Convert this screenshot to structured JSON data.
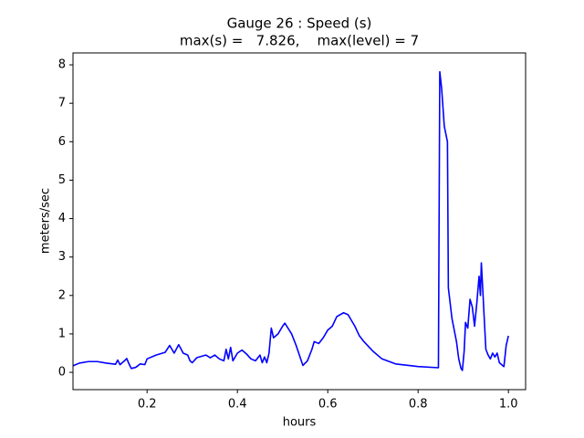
{
  "chart_data": {
    "type": "line",
    "title": "Gauge 26 : Speed (s)",
    "subtitle": "max(s) =   7.826,    max(level) = 7",
    "xlabel": "hours",
    "ylabel": "meters/sec",
    "xlim": [
      0.036,
      1.038
    ],
    "ylim": [
      -0.45,
      8.31
    ],
    "xticks": [
      0.2,
      0.4,
      0.6,
      0.8,
      {
        "value": 1.0,
        "label": "1.0"
      }
    ],
    "yticks": [
      0,
      1,
      2,
      3,
      4,
      5,
      6,
      7,
      8
    ],
    "grid": false,
    "series": [
      {
        "name": "speed",
        "color": "#0000ff",
        "x": [
          0.036,
          0.05,
          0.07,
          0.09,
          0.11,
          0.13,
          0.135,
          0.14,
          0.15,
          0.155,
          0.16,
          0.165,
          0.175,
          0.185,
          0.195,
          0.2,
          0.22,
          0.24,
          0.25,
          0.26,
          0.27,
          0.28,
          0.29,
          0.295,
          0.3,
          0.31,
          0.33,
          0.34,
          0.35,
          0.36,
          0.37,
          0.375,
          0.38,
          0.385,
          0.39,
          0.4,
          0.41,
          0.42,
          0.43,
          0.44,
          0.45,
          0.455,
          0.46,
          0.465,
          0.47,
          0.475,
          0.48,
          0.49,
          0.5,
          0.505,
          0.52,
          0.53,
          0.54,
          0.545,
          0.555,
          0.565,
          0.57,
          0.58,
          0.59,
          0.6,
          0.61,
          0.62,
          0.635,
          0.645,
          0.66,
          0.67,
          0.68,
          0.7,
          0.72,
          0.75,
          0.8,
          0.845,
          0.848,
          0.852,
          0.858,
          0.865,
          0.867,
          0.875,
          0.885,
          0.89,
          0.895,
          0.898,
          0.902,
          0.905,
          0.91,
          0.915,
          0.92,
          0.925,
          0.93,
          0.935,
          0.938,
          0.94,
          0.943,
          0.946,
          0.95,
          0.955,
          0.96,
          0.965,
          0.97,
          0.975,
          0.98,
          0.985,
          0.99,
          0.995,
          1.0
        ],
        "values": [
          0.17,
          0.24,
          0.28,
          0.28,
          0.24,
          0.21,
          0.32,
          0.2,
          0.3,
          0.36,
          0.22,
          0.1,
          0.13,
          0.22,
          0.2,
          0.35,
          0.45,
          0.52,
          0.7,
          0.5,
          0.72,
          0.5,
          0.45,
          0.3,
          0.25,
          0.38,
          0.45,
          0.38,
          0.45,
          0.35,
          0.3,
          0.6,
          0.35,
          0.65,
          0.3,
          0.5,
          0.58,
          0.48,
          0.35,
          0.3,
          0.45,
          0.25,
          0.4,
          0.25,
          0.5,
          1.15,
          0.9,
          1.0,
          1.2,
          1.28,
          1.0,
          0.7,
          0.35,
          0.18,
          0.3,
          0.6,
          0.8,
          0.75,
          0.9,
          1.1,
          1.2,
          1.45,
          1.55,
          1.5,
          1.2,
          0.95,
          0.8,
          0.55,
          0.35,
          0.22,
          0.15,
          0.12,
          7.82,
          7.4,
          6.4,
          6.0,
          2.2,
          1.4,
          0.8,
          0.35,
          0.1,
          0.05,
          0.55,
          1.3,
          1.15,
          1.9,
          1.7,
          1.2,
          1.8,
          2.5,
          2.0,
          2.85,
          2.2,
          1.5,
          0.6,
          0.45,
          0.35,
          0.5,
          0.4,
          0.5,
          0.25,
          0.2,
          0.15,
          0.7,
          0.95
        ]
      }
    ]
  }
}
